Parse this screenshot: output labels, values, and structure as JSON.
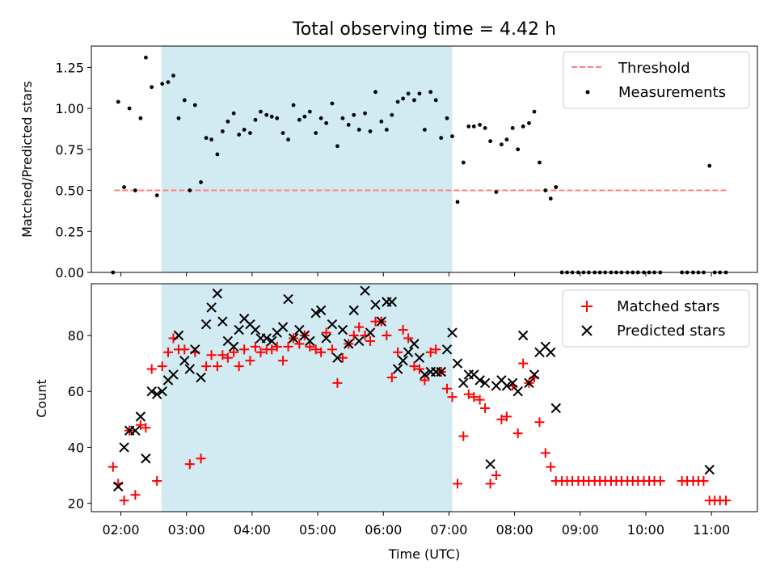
{
  "chart_data": [
    {
      "type": "scatter",
      "title": "Total observing time = 4.42 h",
      "ylabel": "Matched/Predicted stars",
      "xlabel": "",
      "xlim": [
        1.55,
        11.7
      ],
      "ylim": [
        0,
        1.38
      ],
      "yticks": [
        0,
        0.25,
        0.5,
        0.75,
        1.0,
        1.25
      ],
      "ytick_labels": [
        "0.00",
        "0.25",
        "0.50",
        "0.75",
        "1.00",
        "1.25"
      ],
      "shaded_span": [
        2.62,
        7.05
      ],
      "legend": {
        "placement": "top-right",
        "entries": [
          "Threshold",
          "Measurements"
        ]
      },
      "threshold": {
        "name": "Threshold",
        "y": 0.5,
        "x": [
          1.9,
          11.25
        ],
        "color": "#ff7f7f",
        "style": "dashed"
      },
      "series": [
        {
          "name": "Measurements",
          "color": "#000000",
          "x": [
            1.88,
            1.96,
            2.05,
            2.13,
            2.22,
            2.3,
            2.38,
            2.47,
            2.55,
            2.63,
            2.72,
            2.8,
            2.88,
            2.97,
            3.05,
            3.13,
            3.22,
            3.3,
            3.38,
            3.47,
            3.55,
            3.63,
            3.72,
            3.8,
            3.88,
            3.97,
            4.05,
            4.13,
            4.22,
            4.3,
            4.38,
            4.47,
            4.55,
            4.63,
            4.72,
            4.8,
            4.88,
            4.97,
            5.05,
            5.13,
            5.22,
            5.3,
            5.38,
            5.47,
            5.55,
            5.63,
            5.72,
            5.8,
            5.88,
            5.97,
            6.05,
            6.13,
            6.22,
            6.3,
            6.38,
            6.47,
            6.55,
            6.63,
            6.72,
            6.8,
            6.88,
            6.97,
            7.05,
            7.13,
            7.22,
            7.3,
            7.38,
            7.47,
            7.55,
            7.63,
            7.72,
            7.8,
            7.88,
            7.97,
            8.05,
            8.13,
            8.22,
            8.3,
            8.38,
            8.47,
            8.55,
            8.63,
            8.72,
            8.8,
            8.88,
            8.97,
            9.05,
            9.13,
            9.22,
            9.3,
            9.38,
            9.47,
            9.55,
            9.63,
            9.72,
            9.8,
            9.88,
            9.97,
            10.05,
            10.13,
            10.22,
            10.55,
            10.63,
            10.72,
            10.8,
            10.88,
            10.97,
            11.05,
            11.13,
            11.22
          ],
          "y": [
            0.0,
            1.04,
            0.52,
            1.0,
            0.5,
            0.94,
            1.31,
            1.13,
            0.47,
            1.15,
            1.16,
            1.2,
            0.94,
            1.05,
            0.5,
            1.02,
            0.55,
            0.82,
            0.81,
            0.72,
            0.86,
            0.92,
            0.97,
            0.84,
            0.87,
            0.85,
            0.93,
            0.98,
            0.96,
            0.95,
            0.94,
            0.85,
            0.81,
            1.02,
            0.93,
            0.95,
            0.98,
            0.85,
            0.94,
            0.91,
            1.03,
            0.77,
            0.94,
            0.9,
            0.96,
            0.87,
            0.97,
            0.86,
            1.1,
            0.92,
            0.87,
            0.96,
            1.04,
            1.06,
            1.09,
            1.05,
            1.09,
            0.87,
            1.1,
            1.05,
            0.82,
            0.94,
            0.83,
            0.43,
            0.67,
            0.89,
            0.89,
            0.9,
            0.88,
            0.8,
            0.49,
            0.78,
            0.81,
            0.88,
            0.75,
            0.89,
            0.91,
            0.98,
            0.67,
            0.5,
            0.45,
            0.52,
            0.0,
            0.0,
            0.0,
            0.0,
            0.0,
            0.0,
            0.0,
            0.0,
            0.0,
            0.0,
            0.0,
            0.0,
            0.0,
            0.0,
            0.0,
            0.0,
            0.0,
            0.0,
            0.0,
            0.0,
            0.0,
            0.0,
            0.0,
            0.0,
            0.65,
            0.0,
            0.0,
            0.0
          ]
        }
      ]
    },
    {
      "type": "scatter",
      "title": "",
      "xlabel": "Time (UTC)",
      "ylabel": "Count",
      "xlim": [
        1.55,
        11.7
      ],
      "ylim": [
        17,
        98.5
      ],
      "yticks": [
        20,
        40,
        60,
        80
      ],
      "ytick_labels": [
        "20",
        "40",
        "60",
        "80"
      ],
      "xticks": [
        2,
        3,
        4,
        5,
        6,
        7,
        8,
        9,
        10,
        11
      ],
      "xtick_labels": [
        "02:00",
        "03:00",
        "04:00",
        "05:00",
        "06:00",
        "07:00",
        "08:00",
        "09:00",
        "10:00",
        "11:00"
      ],
      "shaded_span": [
        2.62,
        7.05
      ],
      "legend": {
        "placement": "top-right",
        "entries": [
          "Matched stars",
          "Predicted stars"
        ]
      },
      "series": [
        {
          "name": "Matched stars",
          "color": "#ff0000",
          "marker": "+",
          "x": [
            1.88,
            1.96,
            2.05,
            2.13,
            2.22,
            2.3,
            2.38,
            2.47,
            2.55,
            2.63,
            2.72,
            2.8,
            2.88,
            2.97,
            3.05,
            3.13,
            3.22,
            3.3,
            3.38,
            3.47,
            3.55,
            3.63,
            3.72,
            3.8,
            3.88,
            3.97,
            4.05,
            4.13,
            4.22,
            4.3,
            4.38,
            4.47,
            4.55,
            4.63,
            4.72,
            4.8,
            4.88,
            4.97,
            5.05,
            5.13,
            5.22,
            5.3,
            5.38,
            5.47,
            5.55,
            5.63,
            5.72,
            5.8,
            5.88,
            5.97,
            6.05,
            6.13,
            6.22,
            6.3,
            6.38,
            6.47,
            6.55,
            6.63,
            6.72,
            6.8,
            6.88,
            6.97,
            7.05,
            7.13,
            7.22,
            7.3,
            7.38,
            7.47,
            7.55,
            7.63,
            7.72,
            7.8,
            7.88,
            7.97,
            8.05,
            8.13,
            8.22,
            8.3,
            8.38,
            8.47,
            8.55,
            8.63,
            8.72,
            8.8,
            8.88,
            8.97,
            9.05,
            9.13,
            9.22,
            9.3,
            9.38,
            9.47,
            9.55,
            9.63,
            9.72,
            9.8,
            9.88,
            9.97,
            10.05,
            10.13,
            10.22,
            10.55,
            10.63,
            10.72,
            10.8,
            10.88,
            10.97,
            11.05,
            11.13,
            11.22
          ],
          "y": [
            33,
            27,
            21,
            46,
            23,
            48,
            47,
            68,
            28,
            69,
            74,
            79,
            75,
            75,
            34,
            74,
            36,
            69,
            73,
            69,
            73,
            72,
            74,
            69,
            75,
            71,
            76,
            74,
            75,
            75,
            76,
            71,
            76,
            79,
            77,
            80,
            76,
            75,
            74,
            81,
            75,
            63,
            72,
            77,
            80,
            83,
            80,
            78,
            85,
            85,
            80,
            65,
            74,
            82,
            79,
            69,
            68,
            64,
            74,
            75,
            67,
            61,
            58,
            27,
            44,
            59,
            58,
            57,
            54,
            27,
            30,
            50,
            51,
            62,
            45,
            70,
            63,
            65,
            49,
            38,
            33,
            28,
            28,
            28,
            28,
            28,
            28,
            28,
            28,
            28,
            28,
            28,
            28,
            28,
            28,
            28,
            28,
            28,
            28,
            28,
            28,
            28,
            28,
            28,
            28,
            28,
            21,
            21,
            21,
            21
          ]
        },
        {
          "name": "Predicted stars",
          "color": "#000000",
          "marker": "x",
          "x": [
            1.96,
            2.05,
            2.13,
            2.22,
            2.3,
            2.38,
            2.47,
            2.55,
            2.63,
            2.72,
            2.8,
            2.88,
            2.97,
            3.05,
            3.13,
            3.22,
            3.3,
            3.38,
            3.47,
            3.55,
            3.63,
            3.72,
            3.8,
            3.88,
            3.97,
            4.05,
            4.13,
            4.22,
            4.3,
            4.38,
            4.47,
            4.55,
            4.63,
            4.72,
            4.8,
            4.88,
            4.97,
            5.05,
            5.13,
            5.22,
            5.3,
            5.38,
            5.47,
            5.55,
            5.63,
            5.72,
            5.8,
            5.88,
            5.97,
            6.05,
            6.13,
            6.22,
            6.3,
            6.38,
            6.47,
            6.55,
            6.63,
            6.72,
            6.8,
            6.88,
            6.97,
            7.05,
            7.13,
            7.22,
            7.3,
            7.38,
            7.47,
            7.55,
            7.63,
            7.72,
            7.8,
            7.88,
            7.97,
            8.05,
            8.13,
            8.22,
            8.3,
            8.38,
            8.47,
            8.55,
            8.63,
            10.97
          ],
          "y": [
            26,
            40,
            46,
            46,
            51,
            36,
            60,
            59,
            60,
            64,
            66,
            80,
            71,
            68,
            75,
            65,
            84,
            90,
            95,
            85,
            78,
            76,
            82,
            86,
            84,
            82,
            79,
            79,
            78,
            81,
            83,
            93,
            79,
            82,
            80,
            78,
            88,
            89,
            79,
            84,
            72,
            82,
            77,
            89,
            78,
            96,
            81,
            91,
            85,
            92,
            92,
            68,
            71,
            74,
            77,
            72,
            66,
            67,
            67,
            67,
            75,
            81,
            70,
            63,
            66,
            66,
            64,
            63,
            34,
            62,
            64,
            62,
            63,
            60,
            80,
            63,
            66,
            74,
            76,
            74,
            54,
            32
          ]
        }
      ]
    }
  ]
}
